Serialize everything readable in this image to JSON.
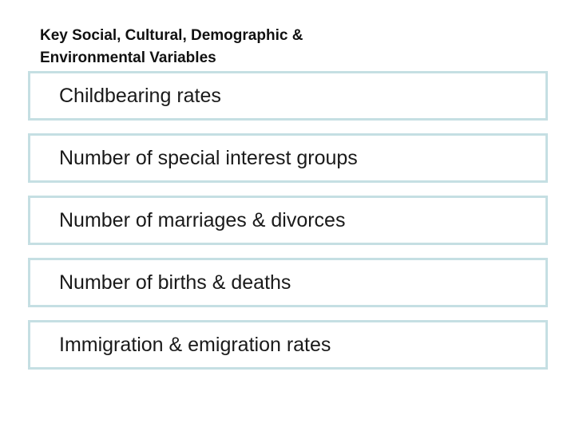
{
  "heading": {
    "line1": "Key Social, Cultural, Demographic &",
    "line2": "Environmental Variables"
  },
  "items": [
    {
      "label": "Childbearing rates"
    },
    {
      "label": "Number of special interest groups"
    },
    {
      "label": "Number of marriages & divorces"
    },
    {
      "label": "Number of births & deaths"
    },
    {
      "label": "Immigration & emigration rates"
    }
  ],
  "colors": {
    "box_border": "#c5dfe3",
    "text": "#1a1a1a",
    "background": "#ffffff"
  }
}
